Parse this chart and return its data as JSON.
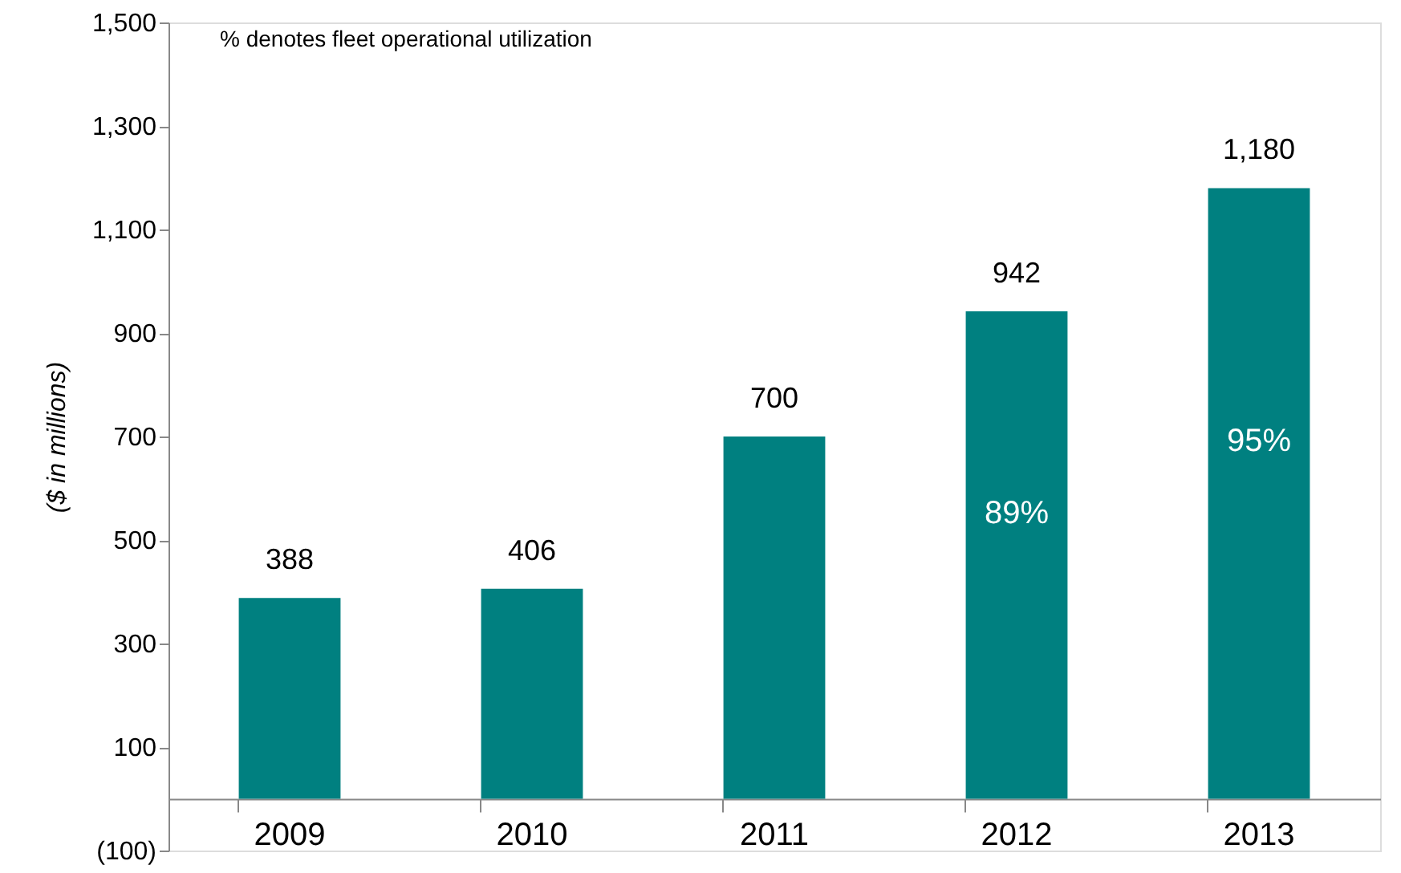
{
  "chart_data": {
    "type": "bar",
    "ylabel": "($ in millions)",
    "categories": [
      "2009",
      "2010",
      "2011",
      "2012",
      "2013"
    ],
    "values": [
      388,
      406,
      700,
      942,
      1180
    ],
    "color": "#008080",
    "value_labels": [
      "388",
      "406",
      "700",
      "942",
      "1,180"
    ],
    "ylim": [
      -100,
      1500
    ],
    "yticks": [
      {
        "value": -100,
        "label": "(100)"
      },
      100,
      300,
      500,
      700,
      900,
      {
        "value": 1100,
        "label": "1,100"
      },
      {
        "value": 1300,
        "label": "1,300"
      },
      {
        "value": 1500,
        "label": "1,500"
      }
    ],
    "grid": false,
    "annotations": [
      "% denotes fleet operational utilization",
      "89%",
      "95%"
    ]
  }
}
